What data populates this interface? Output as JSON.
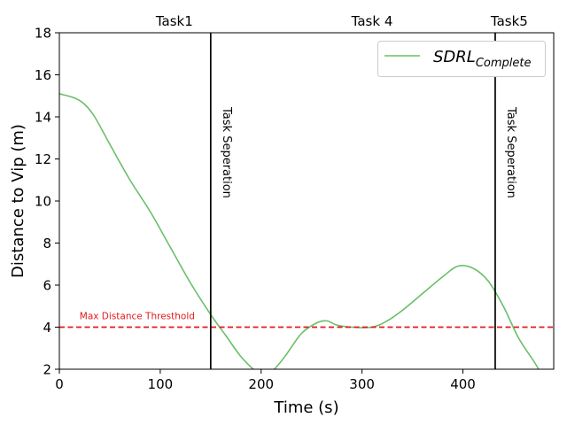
{
  "chart_data": {
    "type": "line",
    "xlabel": "Time (s)",
    "ylabel": "Distance to Vip (m)",
    "xlim": [
      0,
      490
    ],
    "ylim": [
      2,
      18
    ],
    "xticks": [
      0,
      100,
      200,
      300,
      400
    ],
    "yticks": [
      2,
      4,
      6,
      8,
      10,
      12,
      14,
      16,
      18
    ],
    "grid": false,
    "legend": {
      "placement": "top-right",
      "text": "SDRL",
      "subscript": "Complete"
    },
    "series": [
      {
        "name": "SDRL_Complete",
        "color": "#6abf69",
        "x": [
          0,
          15,
          25,
          35,
          50,
          70,
          90,
          110,
          130,
          150,
          165,
          180,
          195,
          205,
          215,
          225,
          240,
          255,
          265,
          275,
          290,
          310,
          325,
          340,
          360,
          380,
          395,
          410,
          425,
          440,
          455,
          470,
          475
        ],
        "y": [
          15.1,
          14.9,
          14.6,
          14.0,
          12.7,
          11.0,
          9.5,
          7.8,
          6.1,
          4.6,
          3.6,
          2.6,
          1.9,
          1.7,
          2.1,
          2.7,
          3.7,
          4.2,
          4.3,
          4.1,
          4.0,
          4.0,
          4.3,
          4.8,
          5.6,
          6.4,
          6.9,
          6.8,
          6.2,
          5.0,
          3.5,
          2.4,
          2.0
        ]
      }
    ],
    "annotations": {
      "threshold": {
        "y": 4,
        "label": "Max Distance Thresthold",
        "color": "#e31a1c"
      },
      "separators": [
        {
          "x": 150,
          "label": "Task Seperation"
        },
        {
          "x": 432,
          "label": "Task Seperation"
        }
      ],
      "task_labels": [
        {
          "x": 114,
          "text": "Task1"
        },
        {
          "x": 310,
          "text": "Task 4"
        },
        {
          "x": 446,
          "text": "Task5"
        }
      ]
    }
  }
}
